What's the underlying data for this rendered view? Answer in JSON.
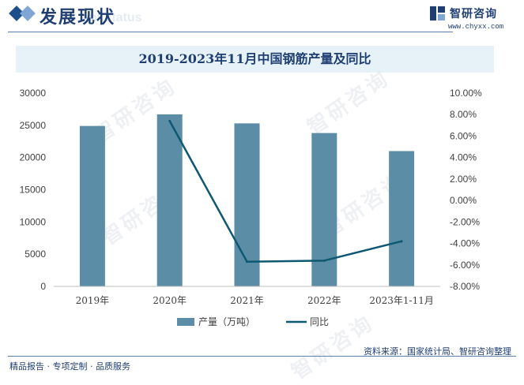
{
  "header": {
    "title": "发展现状",
    "subtitle": "ent status",
    "logo_name": "智研咨询",
    "logo_url": "www.chyxx.com"
  },
  "footer": {
    "left": "精品报告 · 专项定制 · 品质服务",
    "source": "资料来源：国家统计局、智研咨询整理"
  },
  "watermark": "智研咨询",
  "colors": {
    "bar": "#5b8ea6",
    "line": "#0e5872",
    "title_bg": "#e6f1f8",
    "brand": "#1f3f73"
  },
  "chart_data": {
    "type": "bar",
    "title": "2019-2023年11月中国钢筋产量及同比",
    "categories": [
      "2019年",
      "2020年",
      "2021年",
      "2022年",
      "2023年1-11月"
    ],
    "series": [
      {
        "name": "产量（万吨）",
        "type": "bar",
        "axis": "left",
        "values": [
          24900,
          26700,
          25300,
          23800,
          21000
        ]
      },
      {
        "name": "同比",
        "type": "line",
        "axis": "right",
        "values": [
          null,
          7.4,
          -5.7,
          -5.6,
          -3.8
        ]
      }
    ],
    "ylim_left": [
      0,
      30000
    ],
    "yticks_left": [
      "0",
      "5000",
      "10000",
      "15000",
      "20000",
      "25000",
      "30000"
    ],
    "ylim_right": [
      -8,
      10
    ],
    "yticks_right": [
      "-8.00%",
      "-6.00%",
      "-4.00%",
      "-2.00%",
      "0.00%",
      "2.00%",
      "4.00%",
      "6.00%",
      "8.00%",
      "10.00%"
    ],
    "legend_position": "bottom",
    "grid": false
  }
}
